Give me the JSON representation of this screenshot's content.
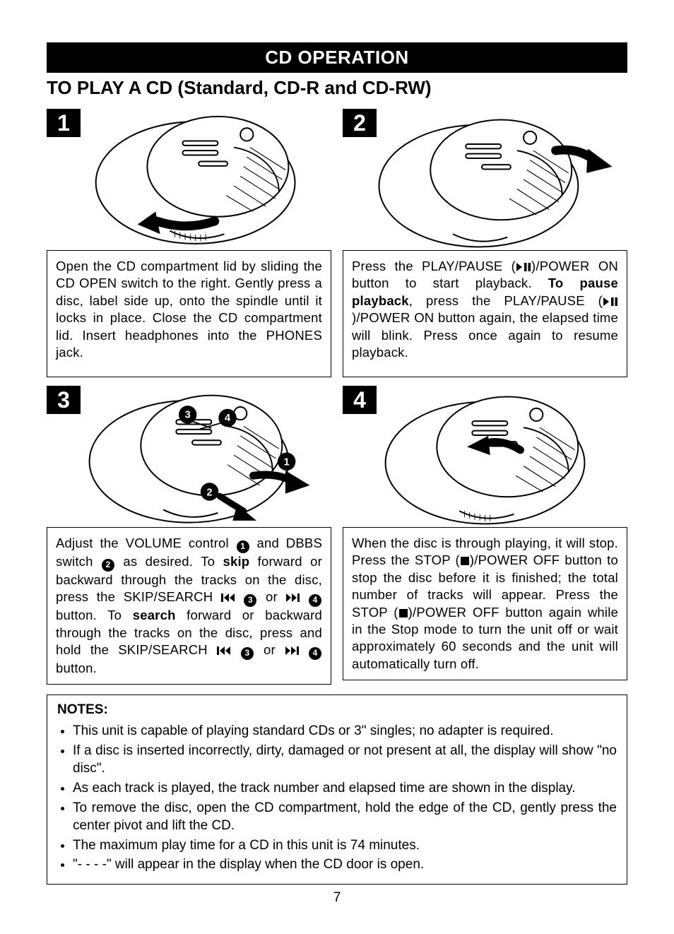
{
  "header": {
    "title": "CD OPERATION"
  },
  "subheading": "TO PLAY A CD (Standard, CD-R and CD-RW)",
  "steps": [
    {
      "num": "1",
      "text_html": "Open the CD compartment lid by sliding the CD OPEN switch to the right. Gently press a disc, label side up, onto the spindle until it locks in place. Close the CD compartment lid. Insert headphones into the PHONES jack."
    },
    {
      "num": "2",
      "text_html": "Press the PLAY/PAUSE ({PLAYPAUSE})/POWER ON button to start playback. <span class='b'>To pause playback</span>, press the PLAY/PAUSE ({PLAYPAUSE})/POWER ON button again, the elapsed time will blink. Press once again to resume playback."
    },
    {
      "num": "3",
      "text_html": "Adjust the VOLUME control {C1} and DBBS switch {C2} as desired. To <span class='b'>skip</span> forward or backward through the tracks on the disc, press the SKIP/SEARCH {PREV} {C3} or {NEXT} {C4} button. To <span class='b'>search</span> forward or backward through the tracks on the disc, press and hold the SKIP/SEARCH {PREV} {C3} or {NEXT} {C4} button."
    },
    {
      "num": "4",
      "text_html": "When the disc is through playing, it will stop. Press the STOP ({STOP})/POWER OFF button to stop the disc before it is finished; the total number of tracks will appear. Press the STOP ({STOP})/POWER OFF button again while in the Stop mode to turn the unit off or wait approximately 60 seconds and the unit will automatically turn off."
    }
  ],
  "notes": {
    "title": "NOTES:",
    "items": [
      "This unit is capable of playing standard CDs or 3\" singles; no adapter is required.",
      "If a disc is inserted incorrectly, dirty, damaged or not present at all, the display will show \"no disc\".",
      "As each track is played, the track number and elapsed time are shown in the display.",
      "To remove the disc, open the CD compartment, hold the edge of the CD, gently press the center pivot and lift the CD.",
      "The maximum play time for a CD in this unit is 74 minutes.",
      "\"- - - -\" will appear in the display when the CD door is open."
    ]
  },
  "page_number": "7",
  "style": {
    "colors": {
      "background": "#ffffff",
      "text": "#000000",
      "header_bg": "#000000",
      "header_fg": "#ffffff",
      "border": "#000000",
      "illustration_stroke": "#000000",
      "illustration_fill": "#ffffff",
      "callout_bg": "#000000",
      "callout_fg": "#ffffff"
    },
    "font_sizes_pt": {
      "header": 20,
      "subheading": 20,
      "body": 14,
      "stepnum": 24,
      "notes": 14,
      "pagenum": 14
    },
    "illustration_description": "Line-art top view of a portable CD player: large ellipse body, circular lid with three slider bars and a small circle (display), radial hatch segments on right half, small arched OPEN switch at bottom. Black curved arrows indicate motion. Step 3 has four black circular callouts labeled 1-4."
  }
}
